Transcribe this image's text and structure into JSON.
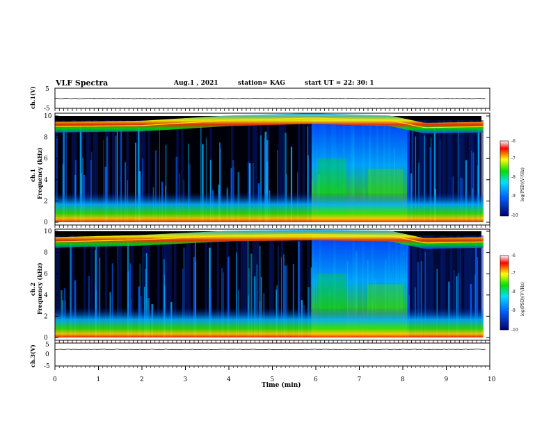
{
  "header": {
    "title": "VLF Spectra",
    "date": "Aug.1 , 2021",
    "station": "station= KAG",
    "start": "start UT = 22: 30: 1"
  },
  "colorbar": {
    "label": "log(PSD)(V²/Hz)",
    "ticks": [
      "-6",
      "-7",
      "-8",
      "-9",
      "-10"
    ]
  },
  "colors": {
    "background": "#000000",
    "low": "#0000a0",
    "mid": "#00c8ff",
    "green": "#00e000",
    "yellow": "#ffff00",
    "high": "#ff0000"
  },
  "chart_data": [
    {
      "type": "line",
      "name": "ch1-voltage",
      "ylabel": "ch.1(V)",
      "ylim": [
        -5,
        5
      ],
      "yticks": [
        "5",
        "-5"
      ],
      "xlim": [
        0,
        10
      ],
      "x": [
        0,
        2,
        4,
        6,
        8,
        10
      ],
      "values": [
        -0.1,
        -0.1,
        -0.1,
        -0.1,
        -0.1,
        -0.1
      ]
    },
    {
      "type": "heatmap",
      "name": "ch1-spectrogram",
      "ylabel": "ch.1\nFrequency (kHz)",
      "ylim": [
        0,
        10
      ],
      "yticks": [
        "0",
        "2",
        "4",
        "6",
        "8",
        "10"
      ],
      "xlim": [
        0,
        10
      ],
      "band_freq_khz": [
        {
          "t": 0,
          "f": 9.0
        },
        {
          "t": 2,
          "f": 9.1
        },
        {
          "t": 4,
          "f": 9.6
        },
        {
          "t": 5.9,
          "f": 9.8
        },
        {
          "t": 7.7,
          "f": 9.6
        },
        {
          "t": 8.5,
          "f": 8.9
        },
        {
          "t": 9.9,
          "f": 9.0
        }
      ],
      "log_psd_range": [
        -10,
        -6
      ]
    },
    {
      "type": "heatmap",
      "name": "ch2-spectrogram",
      "ylabel": "ch.2\nFrequency (kHz)",
      "ylim": [
        0,
        10
      ],
      "yticks": [
        "0",
        "2",
        "4",
        "6",
        "8",
        "10"
      ],
      "xlim": [
        0,
        10
      ],
      "band_freq_khz": [
        {
          "t": 0,
          "f": 9.0
        },
        {
          "t": 2,
          "f": 9.2
        },
        {
          "t": 4,
          "f": 9.6
        },
        {
          "t": 5.9,
          "f": 9.7
        },
        {
          "t": 7.7,
          "f": 9.6
        },
        {
          "t": 8.5,
          "f": 8.9
        },
        {
          "t": 9.9,
          "f": 9.0
        }
      ],
      "log_psd_range": [
        -10,
        -6
      ]
    },
    {
      "type": "line",
      "name": "ch3-voltage",
      "ylabel": "ch.3(V)",
      "ylim": [
        -5,
        5
      ],
      "yticks": [
        "5",
        "0",
        "-5"
      ],
      "xlim": [
        0,
        10
      ],
      "xlabel": "Time (min)",
      "xticks": [
        "0",
        "1",
        "2",
        "3",
        "4",
        "5",
        "6",
        "7",
        "8",
        "9",
        "10"
      ],
      "x": [
        0,
        2,
        4,
        6,
        8,
        10
      ],
      "values": [
        2.2,
        2.2,
        2.2,
        2.2,
        2.2,
        2.2
      ]
    }
  ]
}
